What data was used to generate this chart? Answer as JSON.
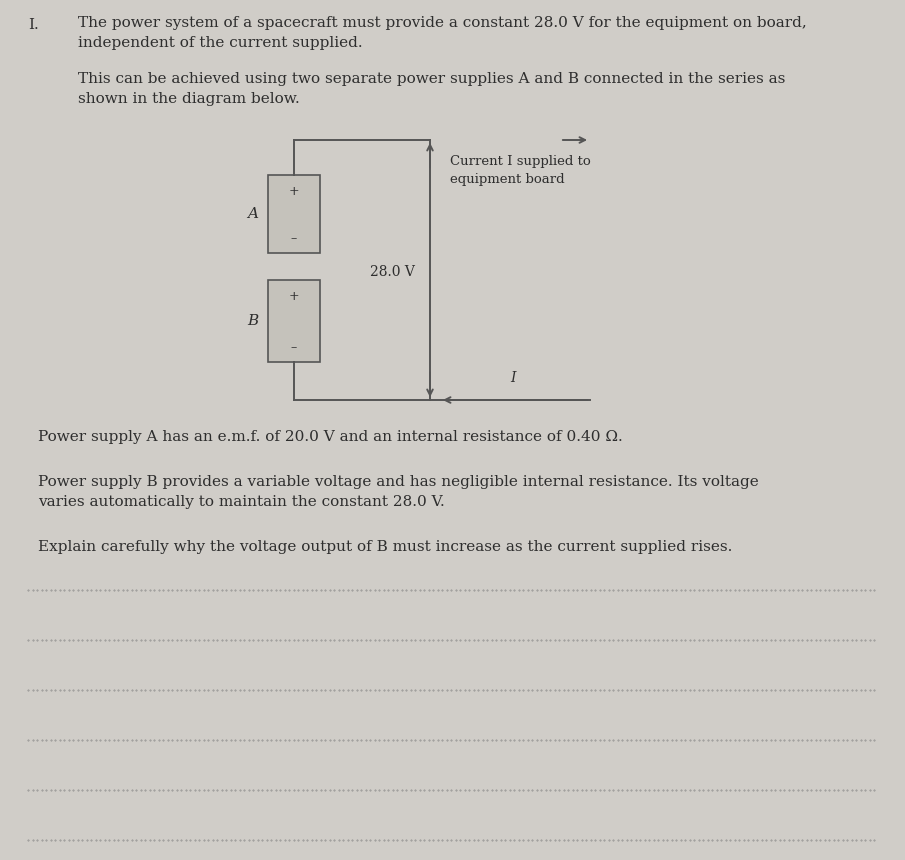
{
  "bg_color": "#d0cdc8",
  "text_color": "#2e2e2e",
  "question_number": "I.",
  "para1_line1": "The power system of a spacecraft must provide a constant 28.0 V for the equipment on board,",
  "para1_line2": "independent of the current supplied.",
  "para2_line1": "This can be achieved using two separate power supplies A and B connected in the series as",
  "para2_line2": "shown in the diagram below.",
  "label_A": "A",
  "label_B": "B",
  "plus_sign": "+",
  "minus_sign": "–",
  "voltage_label": "28.0 V",
  "current_label": "Current I supplied to\nequipment board",
  "current_arrow_label": "I",
  "para3": "Power supply A has an e.m.f. of 20.0 V and an internal resistance of 0.40 Ω.",
  "para4_line1": "Power supply B provides a variable voltage and has negligible internal resistance. Its voltage",
  "para4_line2": "varies automatically to maintain the constant 28.0 V.",
  "para5": "Explain carefully why the voltage output of B must increase as the current supplied rises.",
  "num_dotted_lines": 6,
  "font_size_main": 11.0,
  "font_size_diagram": 10.0,
  "wire_color": "#555555",
  "box_face": "#c5c2bb",
  "box_edge": "#555555"
}
